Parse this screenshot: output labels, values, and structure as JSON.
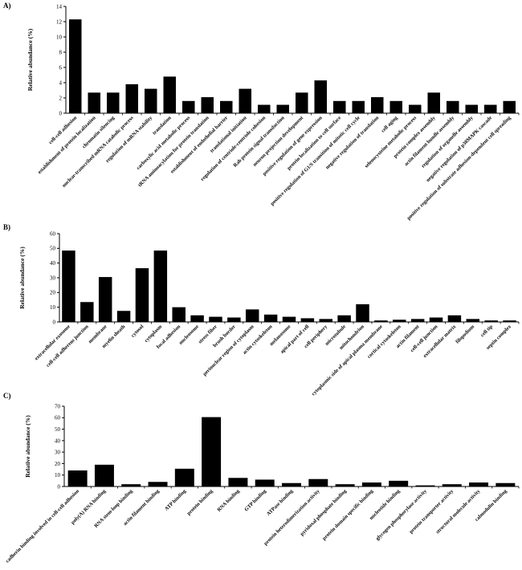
{
  "chart_data": [
    {
      "type": "bar",
      "panel": "A)",
      "ylabel": "Relative abundance (%)",
      "ylim": [
        0,
        14
      ],
      "yticks": [
        0,
        2,
        4,
        6,
        8,
        10,
        12,
        14
      ],
      "categories": [
        "cell-cell adhesion",
        "establishment of protein localization",
        "chromatin silencing",
        "nuclear-transcribed mRNA catabolic process",
        "regulation of mRNA stability",
        "translation",
        "carboxylic acid metabolic process",
        "tRNA aminoacylation for protein translation",
        "establishment of endothelial barrier",
        "translational initiation",
        "regulation of centriole-centriole cohesion",
        "Rab protein signal transduction",
        "neuron projection development",
        "positive regulation of gene expression",
        "protein localization to cell surface",
        "positive regulation of G1/S transition of mitotic cell cycle",
        "negative regulation of translation",
        "cell aging",
        "selenocysteine metabolic process",
        "protein complex assembly",
        "actin filament bundle assembly",
        "regulation of organelle assembly",
        "negative regulation of p38MAPK cascade",
        "positive regulation of substrate adhesion-dependent cell spreading"
      ],
      "values": [
        12.3,
        2.7,
        2.7,
        3.8,
        3.2,
        4.8,
        1.6,
        2.1,
        1.6,
        3.2,
        1.1,
        1.1,
        2.7,
        4.3,
        1.6,
        1.6,
        2.1,
        1.6,
        1.1,
        2.7,
        1.6,
        1.1,
        1.1,
        1.6
      ]
    },
    {
      "type": "bar",
      "panel": "B)",
      "ylabel": "Relative abundance (%)",
      "ylim": [
        0,
        60
      ],
      "yticks": [
        0,
        10,
        20,
        30,
        40,
        50,
        60
      ],
      "categories": [
        "extracellular exosome",
        "cell-cell adherens junction",
        "membrane",
        "myelin sheath",
        "cytosol",
        "cytoplasm",
        "focal adhesion",
        "nucleosome",
        "stress fiber",
        "brush border",
        "perinuclear region of cytoplasm",
        "actin cytoskeleton",
        "melanosome",
        "apical part of cell",
        "cell periphery",
        "microtubule",
        "mitochondrion",
        "cytoplasmic side of apical plasma membrane",
        "cortical cytoskeleton",
        "actin filament",
        "cell-cell junction",
        "extracellular matrix",
        "filopodium",
        "cell tip",
        "septin complex"
      ],
      "values": [
        48.5,
        13.5,
        30.5,
        7.5,
        36.5,
        48.5,
        10.0,
        4.5,
        3.5,
        3.0,
        8.5,
        5.0,
        3.5,
        2.5,
        2.0,
        4.5,
        12.0,
        1.0,
        1.5,
        2.0,
        3.0,
        4.5,
        2.0,
        1.0,
        1.0
      ]
    },
    {
      "type": "bar",
      "panel": "C)",
      "ylabel": "Relative abundance (%)",
      "ylim": [
        0,
        70
      ],
      "yticks": [
        0,
        10,
        20,
        30,
        40,
        50,
        60,
        70
      ],
      "categories": [
        "cadherin binding involved in cell-cell adhesion",
        "poly(A) RNA binding",
        "RNA stem-loop binding",
        "actin filament binding",
        "ATP binding",
        "protein binding",
        "RNA binding",
        "GTP binding",
        "ATPase binding",
        "protein heterodimerization activity",
        "pyridoxal phosphate binding",
        "protein domain specific binding",
        "nucleotide binding",
        "glycogen phosphorylase activity",
        "protein transporter activity",
        "structural molecule activity",
        "calmodulin binding"
      ],
      "values": [
        14.0,
        19.0,
        2.0,
        4.0,
        15.5,
        60.5,
        7.5,
        6.0,
        3.0,
        6.5,
        2.0,
        3.5,
        5.0,
        1.0,
        2.0,
        3.5,
        3.0
      ]
    }
  ]
}
